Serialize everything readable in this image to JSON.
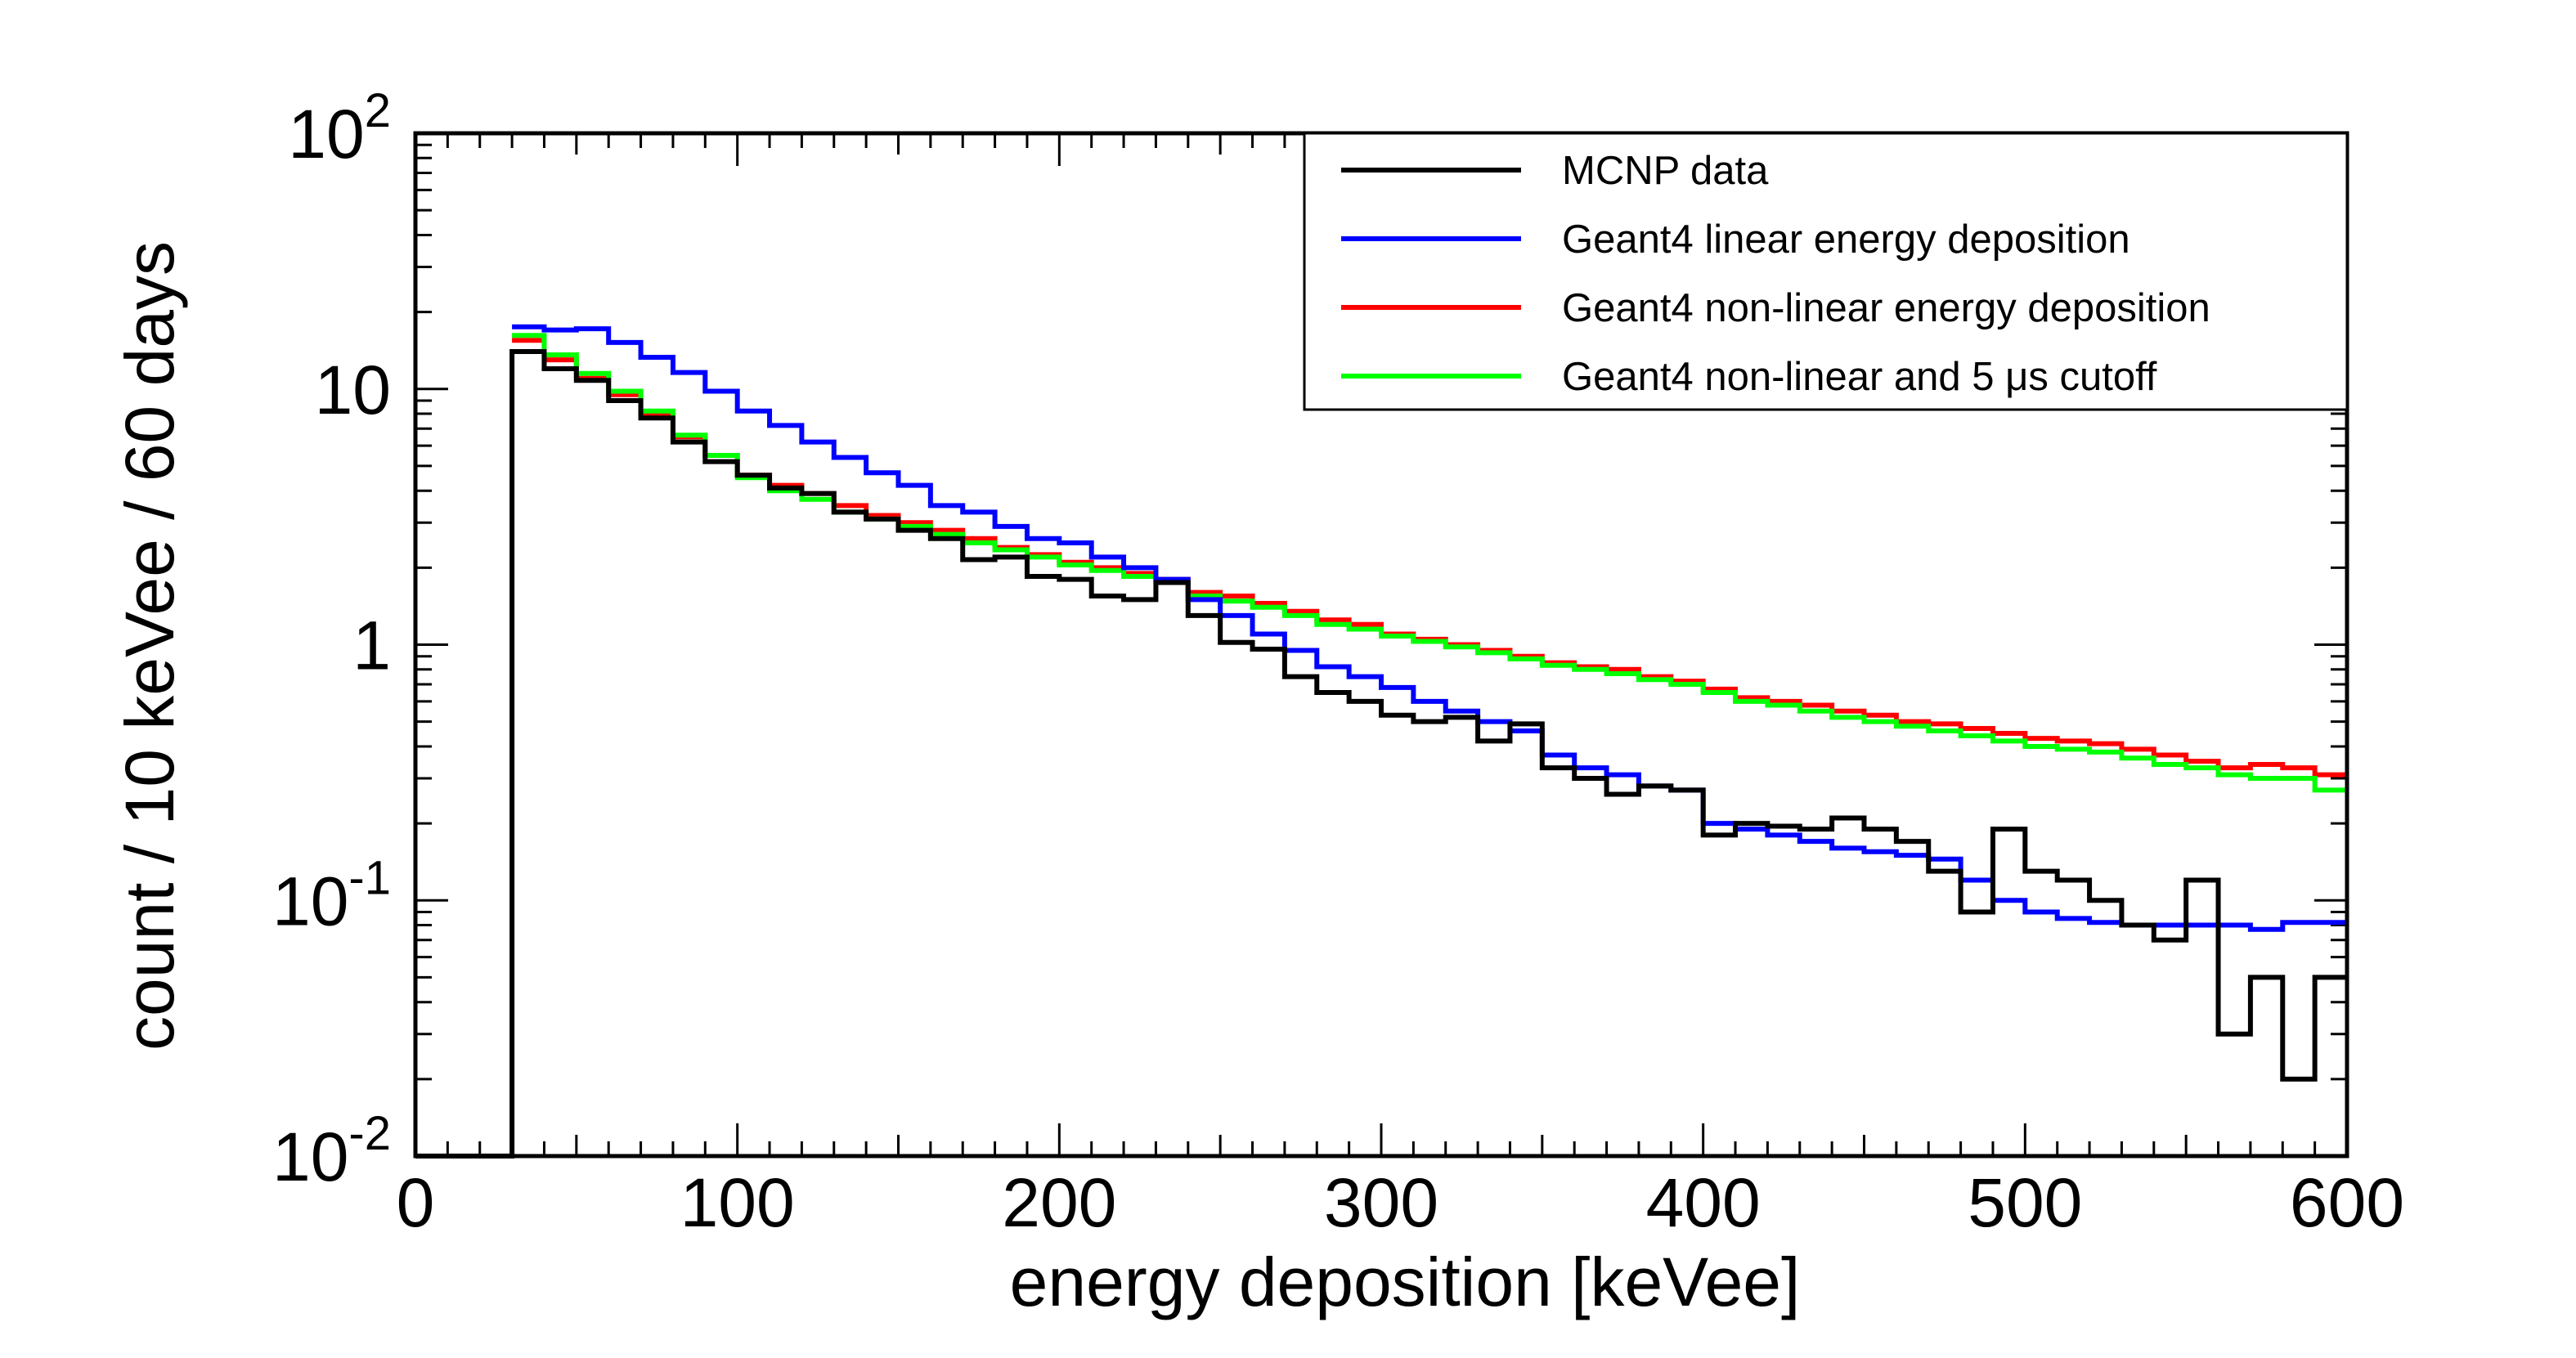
{
  "chart_data": {
    "type": "line",
    "title": "",
    "xlabel": "energy deposition [keVee]",
    "ylabel": "count / 10 keVee / 60 days",
    "xlim": [
      0,
      600
    ],
    "ylim": [
      0.01,
      100
    ],
    "yscale": "log",
    "grid": false,
    "legend_position": "top-right",
    "bin_width": 10,
    "x_ticks": [
      "0",
      "100",
      "200",
      "300",
      "400",
      "500",
      "600"
    ],
    "y_ticks": [
      {
        "base": "10",
        "exp": "-2"
      },
      {
        "base": "10",
        "exp": "-1"
      },
      {
        "base": "1",
        "exp": ""
      },
      {
        "base": "10",
        "exp": ""
      },
      {
        "base": "10",
        "exp": "2"
      }
    ],
    "x_bin_edges": [
      0,
      10,
      20,
      30,
      40,
      50,
      60,
      70,
      80,
      90,
      100,
      110,
      120,
      130,
      140,
      150,
      160,
      170,
      180,
      190,
      200,
      210,
      220,
      230,
      240,
      250,
      260,
      270,
      280,
      290,
      300,
      310,
      320,
      330,
      340,
      350,
      360,
      370,
      380,
      390,
      400,
      410,
      420,
      430,
      440,
      450,
      460,
      470,
      480,
      490,
      500,
      510,
      520,
      530,
      540,
      550,
      560,
      570,
      580,
      590,
      600
    ],
    "series": [
      {
        "name": "MCNP data",
        "color": "#000000",
        "values": [
          0.01,
          0.01,
          0.01,
          14.0,
          12.0,
          10.8,
          9.0,
          7.7,
          6.2,
          5.2,
          4.6,
          4.1,
          3.9,
          3.3,
          3.1,
          2.8,
          2.6,
          2.15,
          2.2,
          1.85,
          1.8,
          1.55,
          1.5,
          1.75,
          1.3,
          1.02,
          0.96,
          0.75,
          0.65,
          0.6,
          0.53,
          0.5,
          0.52,
          0.42,
          0.49,
          0.33,
          0.3,
          0.26,
          0.28,
          0.27,
          0.18,
          0.2,
          0.195,
          0.19,
          0.21,
          0.19,
          0.17,
          0.13,
          0.09,
          0.19,
          0.13,
          0.12,
          0.1,
          0.08,
          0.07,
          0.12,
          0.03,
          0.05,
          0.02,
          0.05
        ]
      },
      {
        "name": "Geant4 linear energy deposition",
        "color": "#0000ff",
        "values": [
          null,
          null,
          null,
          17.5,
          17.0,
          17.2,
          15.2,
          13.3,
          11.6,
          9.8,
          8.2,
          7.2,
          6.2,
          5.4,
          4.7,
          4.2,
          3.5,
          3.3,
          2.9,
          2.6,
          2.5,
          2.2,
          2.0,
          1.8,
          1.5,
          1.3,
          1.1,
          0.95,
          0.82,
          0.75,
          0.68,
          0.6,
          0.55,
          0.5,
          0.46,
          0.37,
          0.33,
          0.31,
          0.28,
          0.27,
          0.2,
          0.19,
          0.18,
          0.17,
          0.16,
          0.155,
          0.15,
          0.145,
          0.12,
          0.1,
          0.09,
          0.085,
          0.082,
          0.08,
          0.08,
          0.08,
          0.08,
          0.077,
          0.082,
          0.082
        ]
      },
      {
        "name": "Geant4 non-linear energy deposition",
        "color": "#ff0000",
        "values": [
          null,
          null,
          null,
          15.5,
          13.0,
          11.0,
          9.5,
          8.0,
          6.5,
          5.5,
          4.6,
          4.2,
          3.9,
          3.5,
          3.2,
          3.0,
          2.8,
          2.6,
          2.4,
          2.25,
          2.1,
          2.0,
          1.9,
          1.8,
          1.6,
          1.55,
          1.45,
          1.35,
          1.25,
          1.2,
          1.1,
          1.05,
          1.0,
          0.95,
          0.9,
          0.85,
          0.82,
          0.8,
          0.75,
          0.72,
          0.67,
          0.62,
          0.6,
          0.58,
          0.55,
          0.53,
          0.5,
          0.49,
          0.47,
          0.45,
          0.43,
          0.42,
          0.41,
          0.39,
          0.37,
          0.35,
          0.33,
          0.34,
          0.33,
          0.31
        ]
      },
      {
        "name": "Geant4 non-linear and 5 μs cutoff",
        "color": "#00ff00",
        "values": [
          null,
          null,
          null,
          16.2,
          13.6,
          11.5,
          9.8,
          8.2,
          6.6,
          5.5,
          4.5,
          4.0,
          3.7,
          3.3,
          3.1,
          2.9,
          2.7,
          2.5,
          2.35,
          2.2,
          2.05,
          1.95,
          1.85,
          1.75,
          1.55,
          1.48,
          1.4,
          1.3,
          1.2,
          1.15,
          1.08,
          1.03,
          0.98,
          0.93,
          0.88,
          0.83,
          0.8,
          0.77,
          0.73,
          0.7,
          0.65,
          0.6,
          0.58,
          0.55,
          0.52,
          0.5,
          0.48,
          0.46,
          0.44,
          0.42,
          0.4,
          0.39,
          0.38,
          0.36,
          0.34,
          0.33,
          0.31,
          0.3,
          0.3,
          0.27
        ]
      }
    ]
  }
}
